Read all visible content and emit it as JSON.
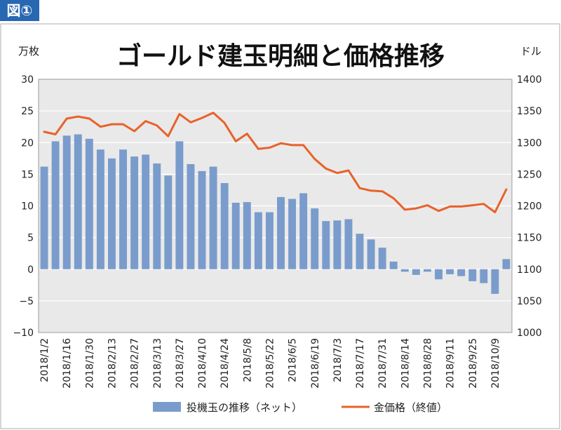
{
  "badge": {
    "label": "図①",
    "color": "#2867b2"
  },
  "chart_data": {
    "type": "bar+line",
    "title": "ゴールド建玉明細と価格推移",
    "ylabel_left": "万枚",
    "ylabel_right": "ドル",
    "ylim_left": [
      -10,
      30
    ],
    "ylim_right": [
      1000,
      1400
    ],
    "yticks_left": [
      "30",
      "25",
      "20",
      "15",
      "10",
      "5",
      "0",
      "−5",
      "−10"
    ],
    "yticks_right": [
      "1400",
      "1350",
      "1300",
      "1250",
      "1200",
      "1150",
      "1100",
      "1050",
      "1000"
    ],
    "x_tick_labels": [
      "2018/1/2",
      "2018/1/16",
      "2018/1/30",
      "2018/2/13",
      "2018/2/27",
      "2018/3/13",
      "2018/3/27",
      "2018/4/10",
      "2018/4/24",
      "2018/5/8",
      "2018/5/22",
      "2018/6/5",
      "2018/6/19",
      "2018/7/3",
      "2018/7/17",
      "2018/7/31",
      "2018/8/14",
      "2018/8/28",
      "2018/9/11",
      "2018/9/25",
      "2018/10/9"
    ],
    "legend_position": "bottom",
    "grid": true,
    "series": [
      {
        "name": "投機玉の推移（ネット）",
        "type": "bar",
        "color": "#7a9ccc",
        "values": [
          16.2,
          20.2,
          21.1,
          21.3,
          20.6,
          18.9,
          17.5,
          18.9,
          17.8,
          18.1,
          16.7,
          14.8,
          20.2,
          16.6,
          15.5,
          16.2,
          13.6,
          10.5,
          10.6,
          9.0,
          9.0,
          11.4,
          11.1,
          12.0,
          9.6,
          7.6,
          7.7,
          7.9,
          5.6,
          4.7,
          3.4,
          1.2,
          -0.4,
          -0.9,
          -0.4,
          -1.6,
          -0.8,
          -1.1,
          -1.9,
          -2.2,
          -3.9,
          1.6
        ]
      },
      {
        "name": "金価格（終値）",
        "type": "line",
        "color": "#e8622a",
        "values": [
          1317,
          1313,
          1338,
          1341,
          1338,
          1325,
          1329,
          1329,
          1318,
          1334,
          1327,
          1310,
          1345,
          1332,
          1339,
          1347,
          1331,
          1302,
          1314,
          1290,
          1292,
          1299,
          1296,
          1296,
          1274,
          1259,
          1252,
          1256,
          1228,
          1224,
          1223,
          1212,
          1194,
          1196,
          1201,
          1192,
          1199,
          1199,
          1201,
          1203,
          1190,
          1226
        ]
      }
    ]
  }
}
